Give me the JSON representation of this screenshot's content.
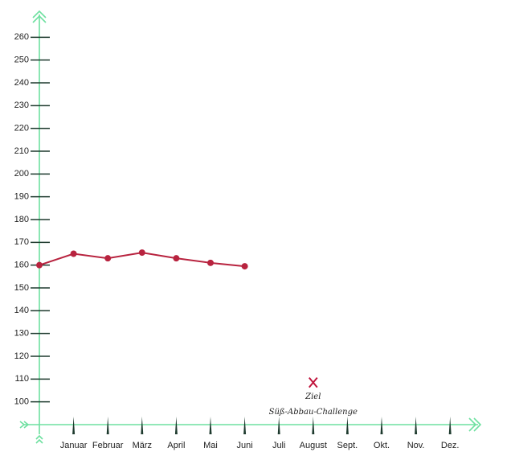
{
  "chart_data": {
    "type": "line",
    "categories": [
      null,
      "Januar",
      "Februar",
      "März",
      "April",
      "Mai",
      "Juni",
      "Juli",
      "August",
      "Sept.",
      "Okt.",
      "Nov.",
      "Dez."
    ],
    "values": [
      160,
      165,
      163,
      165.5,
      163,
      161,
      159.5,
      null,
      null,
      null,
      null,
      null,
      null
    ],
    "color": "#b8233f",
    "ylim": [
      90,
      270
    ],
    "yticks": [
      100,
      110,
      120,
      130,
      140,
      150,
      160,
      170,
      180,
      190,
      200,
      210,
      220,
      230,
      240,
      250,
      260
    ],
    "goal": {
      "label": "Ziel",
      "sublabel": "Süß-Abbau-Challenge",
      "category": "August",
      "value": 108.5,
      "color": "#c0143c"
    }
  }
}
